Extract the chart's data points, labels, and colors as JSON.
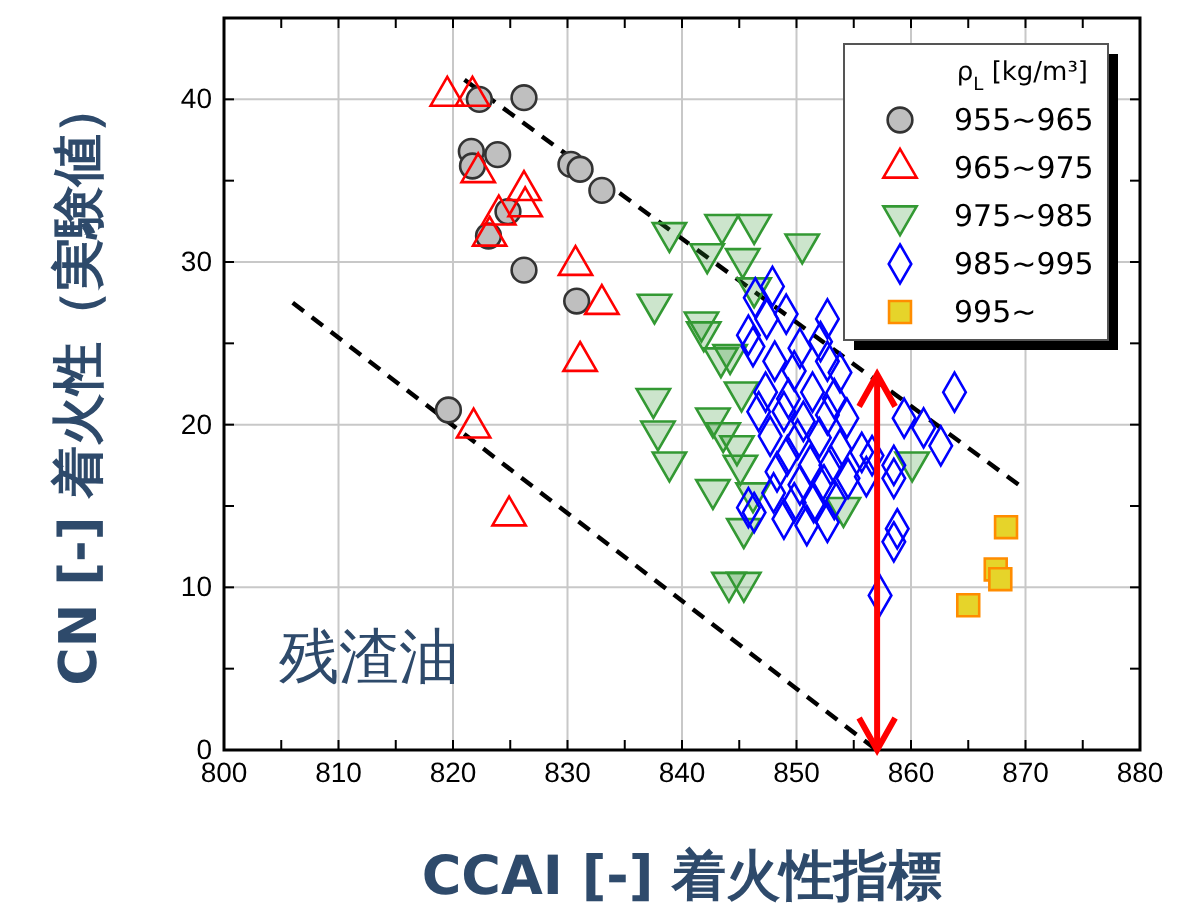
{
  "chart_data": {
    "type": "scatter",
    "xlabel": "CCAI [-] 着火性指標",
    "ylabel": "CN [-] 着火性（実験値）",
    "legend_title": "ρ$_{L}$ [kg/m³]",
    "legend": "top right",
    "grid": true,
    "xlim": [
      800,
      880
    ],
    "xticks": [
      800,
      {
        "value": 805,
        "label": null
      },
      810,
      {
        "value": 815,
        "label": null
      },
      820,
      {
        "value": 825,
        "label": null
      },
      830,
      {
        "value": 835,
        "label": null
      },
      840,
      {
        "value": 845,
        "label": null
      },
      850,
      {
        "value": 855,
        "label": null
      },
      860,
      {
        "value": 865,
        "label": null
      },
      870,
      {
        "value": 875,
        "label": null
      },
      880
    ],
    "ylim": [
      0,
      45
    ],
    "yticks": [
      0,
      {
        "value": 5,
        "label": null
      },
      10,
      {
        "value": 15,
        "label": null
      },
      20,
      {
        "value": 25,
        "label": null
      },
      30,
      {
        "value": 35,
        "label": null
      },
      40
    ],
    "annotations": [
      "残渣油"
    ],
    "series": [
      {
        "type": "line",
        "color": "#000000",
        "line_style": "dashed",
        "marker": "none",
        "x": [
          821,
          870
        ],
        "values": [
          41.2,
          16
        ]
      },
      {
        "type": "line",
        "color": "#000000",
        "line_style": "dashed",
        "marker": "none",
        "x": [
          806,
          857
        ],
        "values": [
          27.5,
          0
        ]
      },
      {
        "name": "955~965",
        "color": "#bfbfbf",
        "marker": "circle",
        "x": [
          822.3,
          826.2,
          821.6,
          823.9,
          821.7,
          830.3,
          831.1,
          833.0,
          824.8,
          823.1,
          826.2,
          830.8,
          819.6
        ],
        "values": [
          40.0,
          40.1,
          36.8,
          36.6,
          35.9,
          36.0,
          35.7,
          34.4,
          33.1,
          31.6,
          29.5,
          27.6,
          20.9
        ]
      },
      {
        "name": "965~975",
        "color": "#ff0000",
        "marker": "triangle",
        "x": [
          819.5,
          821.7,
          822.2,
          826.2,
          826.3,
          824.0,
          823.2,
          830.7,
          833.0,
          831.1,
          821.8,
          824.9
        ],
        "values": [
          40.2,
          40.2,
          35.5,
          34.4,
          33.4,
          32.9,
          31.6,
          29.8,
          27.4,
          23.9,
          19.8,
          14.4
        ]
      },
      {
        "name": "975~985",
        "color": "#339933",
        "marker": "triangle-down",
        "x": [
          838.9,
          843.5,
          846.3,
          842.2,
          845.3,
          850.5,
          837.6,
          841.7,
          841.9,
          843.4,
          844.2,
          837.5,
          837.9,
          838.9,
          842.7,
          843.6,
          844.8,
          845.1,
          842.7,
          846.2,
          845.2,
          845.4,
          844.1,
          845.4,
          854.1,
          860.1,
          846.3
        ],
        "values": [
          31.8,
          32.3,
          32.3,
          30.5,
          30.2,
          31.1,
          27.4,
          26.3,
          25.7,
          24.1,
          24.3,
          21.6,
          19.6,
          17.7,
          20.4,
          19.5,
          18.7,
          17.5,
          16.0,
          15.8,
          22.0,
          13.6,
          10.3,
          10.3,
          14.9,
          17.7,
          28.4
        ]
      },
      {
        "name": "985~995",
        "color": "#0000ff",
        "marker": "diamond",
        "x": [
          847.9,
          846.4,
          849.1,
          852.7,
          847.4,
          845.8,
          846.2,
          850.3,
          852.1,
          848.1,
          849.8,
          852.7,
          853.8,
          847.3,
          849.3,
          851.4,
          853.3,
          846.7,
          848.9,
          850.6,
          852.7,
          854.4,
          847.7,
          850.1,
          852.0,
          853.8,
          855.7,
          849.2,
          851.2,
          853.0,
          854.5,
          856.6,
          858.5,
          848.3,
          850.3,
          852.4,
          848.0,
          849.8,
          851.5,
          853.3,
          846.3,
          848.9,
          850.9,
          852.7,
          859.4,
          861.1,
          862.6,
          863.8,
          858.8,
          858.5,
          857.3,
          856.1,
          858.5,
          845.8
        ],
        "values": [
          28.5,
          27.8,
          26.8,
          26.5,
          26.5,
          25.5,
          24.8,
          24.7,
          25.1,
          23.9,
          23.3,
          23.9,
          23.2,
          22.0,
          21.6,
          22.0,
          21.6,
          20.8,
          20.8,
          20.2,
          20.6,
          20.4,
          19.3,
          19.1,
          19.2,
          18.5,
          18.3,
          18.1,
          17.5,
          17.5,
          16.7,
          18.1,
          17.5,
          17.1,
          16.3,
          16.3,
          15.8,
          15.2,
          15.2,
          15.4,
          14.6,
          14.2,
          13.8,
          14.0,
          20.4,
          19.8,
          18.7,
          22.0,
          13.6,
          12.8,
          9.5,
          16.8,
          16.7,
          14.9
        ]
      },
      {
        "name": "995~",
        "color": "#e6d42a",
        "marker": "square",
        "x": [
          868.3,
          867.4,
          867.8,
          865.0
        ],
        "values": [
          13.7,
          11.1,
          10.5,
          8.9
        ]
      }
    ]
  }
}
